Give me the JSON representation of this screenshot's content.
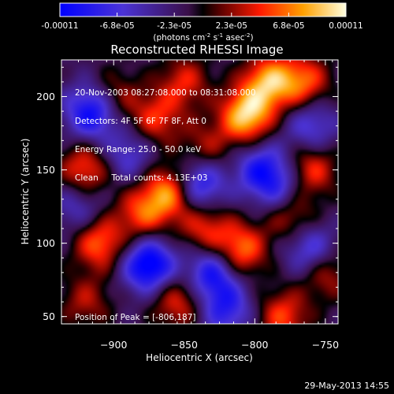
{
  "colors": {
    "background": "#000000",
    "text": "#ffffff"
  },
  "colorbar": {
    "tick_labels": [
      "-0.00011",
      "-6.8e-05",
      "-2.3e-05",
      "2.3e-05",
      "6.8e-05",
      "0.00011"
    ],
    "unit_base": "(photons cm",
    "unit_exp1": "-2",
    "unit_mid": " s",
    "unit_exp2": "-1",
    "unit_end": " asec",
    "unit_exp3": "-2",
    "unit_close": ")",
    "range": [
      -0.00011,
      0.00011
    ]
  },
  "chart_data": {
    "type": "heatmap",
    "title": "Reconstructed RHESSI Image",
    "xlabel": "Heliocentric X (arcsec)",
    "ylabel": "Heliocentric Y (arcsec)",
    "xlim": [
      -937,
      -741
    ],
    "ylim": [
      45,
      225
    ],
    "x_ticks": [
      -900,
      -850,
      -800,
      -750
    ],
    "y_ticks": [
      50,
      100,
      150,
      200
    ],
    "value_range": [
      -0.00011,
      0.00011
    ],
    "peak": [
      -806,
      187
    ],
    "blobs": [
      {
        "x": -806,
        "y": 187,
        "v": 1.0
      },
      {
        "x": -790,
        "y": 210,
        "v": 0.85
      },
      {
        "x": -765,
        "y": 210,
        "v": 0.65
      },
      {
        "x": -760,
        "y": 150,
        "v": 0.6
      },
      {
        "x": -775,
        "y": 120,
        "v": 0.55
      },
      {
        "x": -810,
        "y": 95,
        "v": 0.75
      },
      {
        "x": -835,
        "y": 110,
        "v": 0.55
      },
      {
        "x": -860,
        "y": 135,
        "v": 0.85
      },
      {
        "x": -880,
        "y": 120,
        "v": 0.6
      },
      {
        "x": -910,
        "y": 100,
        "v": 0.7
      },
      {
        "x": -920,
        "y": 150,
        "v": 0.65
      },
      {
        "x": -870,
        "y": 185,
        "v": 0.55
      },
      {
        "x": -900,
        "y": 200,
        "v": 0.45
      },
      {
        "x": -850,
        "y": 210,
        "v": 0.5
      },
      {
        "x": -835,
        "y": 165,
        "v": 0.4
      },
      {
        "x": -855,
        "y": 60,
        "v": 0.55
      },
      {
        "x": -780,
        "y": 50,
        "v": 0.6
      },
      {
        "x": -750,
        "y": 80,
        "v": 0.5
      },
      {
        "x": -920,
        "y": 60,
        "v": 0.4
      },
      {
        "x": -795,
        "y": 150,
        "v": -0.7
      },
      {
        "x": -840,
        "y": 140,
        "v": -0.8
      },
      {
        "x": -915,
        "y": 190,
        "v": -0.9
      },
      {
        "x": -875,
        "y": 85,
        "v": -1.0
      },
      {
        "x": -830,
        "y": 80,
        "v": -0.75
      },
      {
        "x": -760,
        "y": 180,
        "v": -0.5
      },
      {
        "x": -820,
        "y": 55,
        "v": -0.6
      },
      {
        "x": -890,
        "y": 160,
        "v": -0.45
      },
      {
        "x": -760,
        "y": 95,
        "v": -0.6
      },
      {
        "x": -925,
        "y": 125,
        "v": -0.4
      },
      {
        "x": -780,
        "y": 135,
        "v": -0.5
      }
    ]
  },
  "info": {
    "line1": "20-Nov-2003 08:27:08.000 to 08:31:08.000",
    "line2": "Detectors: 4F 5F 6F 7F 8F, Att 0",
    "line3": "Energy Range: 25.0 - 50.0 keV",
    "line4": "Clean     Total counts: 4.13E+03",
    "peak_label": "Position of Peak = [-806,187]"
  },
  "footer": {
    "timestamp": "29-May-2013 14:55"
  }
}
